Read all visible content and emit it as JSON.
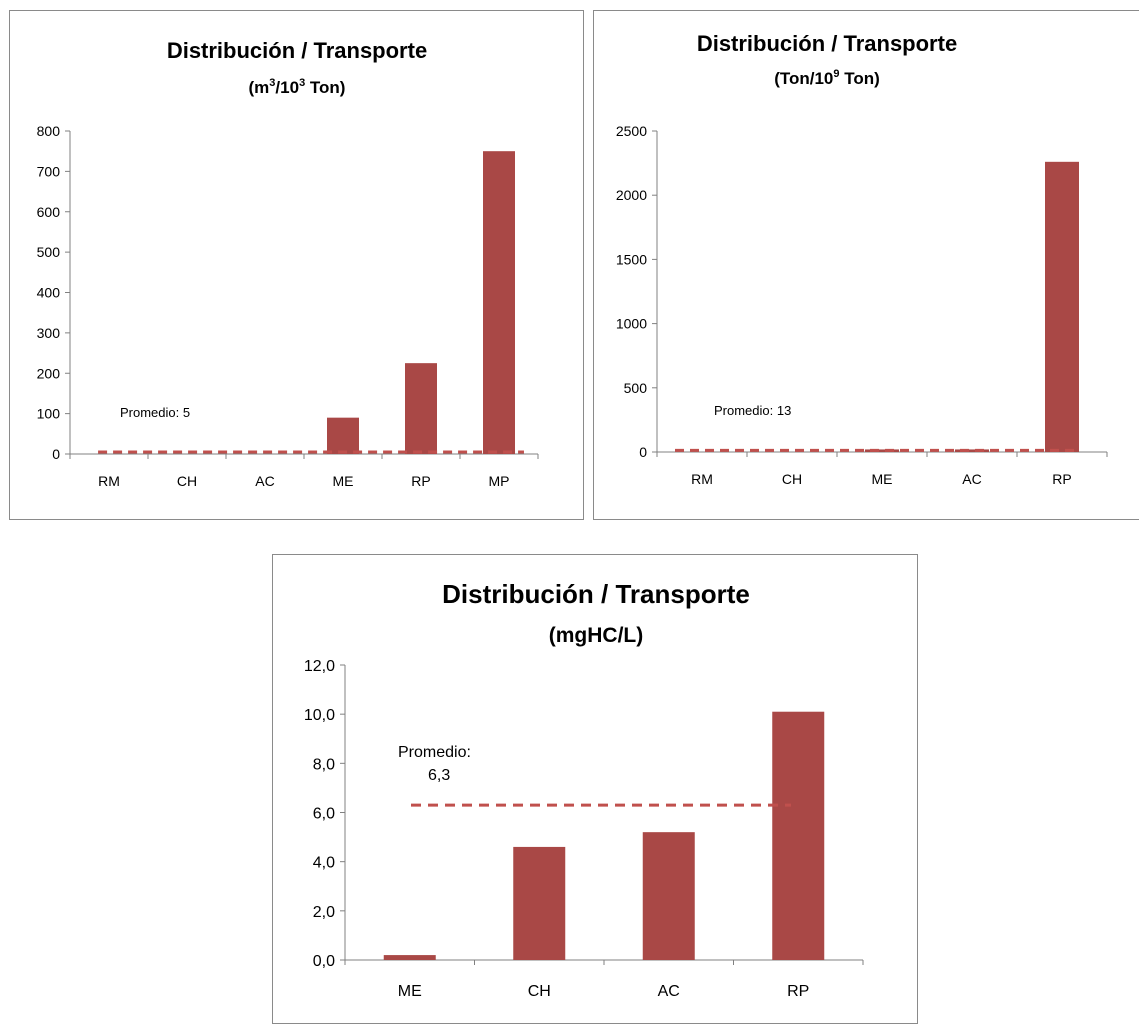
{
  "colors": {
    "bar": "#a94846",
    "average_line": "#c0504d",
    "axis": "#808080"
  },
  "chart_data": [
    {
      "type": "bar",
      "title": "Distribución / Transporte",
      "subtitle_parts": [
        "(m",
        "3",
        "/10",
        "3",
        " Ton)"
      ],
      "categories": [
        "RM",
        "CH",
        "AC",
        "ME",
        "RP",
        "MP"
      ],
      "values": [
        0,
        0,
        0,
        90,
        225,
        750
      ],
      "yticks": [
        "0",
        "100",
        "200",
        "300",
        "400",
        "500",
        "600",
        "700",
        "800"
      ],
      "ylim": [
        0,
        800
      ],
      "average": {
        "value": 5,
        "label": "Promedio: 5"
      },
      "grid": false,
      "legend": "none"
    },
    {
      "type": "bar",
      "title": "Distribución / Transporte",
      "subtitle_parts": [
        "(Ton/10",
        "9",
        " Ton)"
      ],
      "categories": [
        "RM",
        "CH",
        "ME",
        "AC",
        "RP"
      ],
      "values": [
        0,
        0,
        20,
        20,
        2260
      ],
      "yticks": [
        "0",
        "500",
        "1000",
        "1500",
        "2000",
        "2500"
      ],
      "ylim": [
        0,
        2500
      ],
      "average": {
        "value": 13,
        "label": "Promedio: 13"
      },
      "grid": false,
      "legend": "none"
    },
    {
      "type": "bar",
      "title": "Distribución / Transporte",
      "subtitle": "(mgHC/L)",
      "categories": [
        "ME",
        "CH",
        "AC",
        "RP"
      ],
      "values": [
        0.2,
        4.6,
        5.2,
        10.1
      ],
      "yticks": [
        "0,0",
        "2,0",
        "4,0",
        "6,0",
        "8,0",
        "10,0",
        "12,0"
      ],
      "ylim": [
        0,
        12
      ],
      "average": {
        "value": 6.3,
        "label_lines": [
          "Promedio:",
          "6,3"
        ]
      },
      "grid": false,
      "legend": "none"
    }
  ]
}
